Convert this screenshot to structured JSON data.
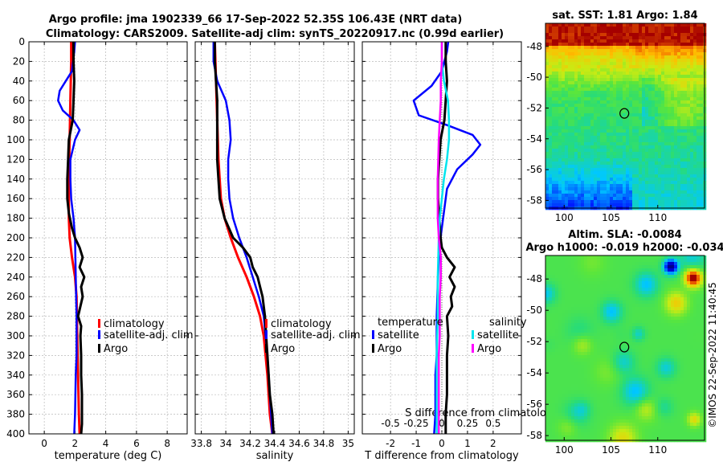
{
  "title": {
    "line1": "Argo profile: jma 1902339_66 17-Sep-2022 52.35S 106.43E (NRT data)",
    "line2": "Climatology: CARS2009. Satellite-adj clim: synTS_20220917.nc (0.99d earlier)"
  },
  "copyright": "©IMOS 22-Sep-2022 11:40:45",
  "colors": {
    "climatology": "#ff0000",
    "satellite": "#0000ff",
    "argo": "#000000",
    "sal_satellite": "#00e5ee",
    "sal_argo": "#ff00ff",
    "grid": "#b0b0b0"
  },
  "chart_data": [
    {
      "id": "temperature",
      "type": "line",
      "xlabel": "temperature (deg C)",
      "xlim": [
        -1,
        9.3
      ],
      "ylim": [
        0,
        400
      ],
      "xticks": [
        0,
        2,
        4,
        6,
        8
      ],
      "xticklabels": [
        "0",
        "2",
        "4",
        "6",
        "8"
      ],
      "yticks": [
        0,
        20,
        40,
        60,
        80,
        100,
        120,
        140,
        160,
        180,
        200,
        220,
        240,
        260,
        280,
        300,
        320,
        340,
        360,
        380,
        400
      ],
      "yticklabels": [
        "0",
        "20",
        "40",
        "60",
        "80",
        "100",
        "120",
        "140",
        "160",
        "180",
        "200",
        "220",
        "240",
        "260",
        "280",
        "300",
        "320",
        "340",
        "360",
        "380",
        "400"
      ],
      "legend": [
        "climatology",
        "satellite-adj. clim",
        "Argo"
      ],
      "series": [
        {
          "name": "climatology",
          "color": "#ff0000",
          "width": 3,
          "x": [
            1.75,
            1.75,
            1.7,
            1.65,
            1.6,
            1.6,
            1.65,
            1.8,
            2.0,
            2.1,
            2.15,
            2.2,
            2.25,
            2.3
          ],
          "y": [
            0,
            20,
            60,
            100,
            140,
            180,
            200,
            220,
            240,
            260,
            300,
            340,
            380,
            400
          ]
        },
        {
          "name": "satellite-adj. clim",
          "color": "#0000ff",
          "width": 2.5,
          "x": [
            2.0,
            1.95,
            1.8,
            1.4,
            1.0,
            0.9,
            1.2,
            1.9,
            2.3,
            2.0,
            1.7,
            1.7,
            1.75,
            1.9,
            2.0,
            2.05,
            2.1,
            2.1,
            2.1,
            2.05,
            2.0,
            1.95
          ],
          "y": [
            0,
            10,
            30,
            40,
            50,
            60,
            70,
            80,
            90,
            100,
            120,
            140,
            160,
            180,
            200,
            240,
            280,
            300,
            320,
            340,
            380,
            400
          ]
        },
        {
          "name": "Argo",
          "color": "#000000",
          "width": 3,
          "x": [
            1.9,
            1.9,
            1.95,
            1.9,
            1.85,
            1.6,
            1.55,
            1.5,
            1.5,
            1.6,
            1.8,
            2.0,
            2.3,
            2.5,
            2.3,
            2.6,
            2.4,
            2.5,
            2.2,
            2.4,
            2.35,
            2.4,
            2.4,
            2.45,
            2.45,
            2.45,
            2.4
          ],
          "y": [
            0,
            20,
            40,
            60,
            80,
            100,
            120,
            140,
            160,
            175,
            190,
            200,
            210,
            220,
            230,
            240,
            250,
            260,
            280,
            290,
            300,
            320,
            340,
            360,
            380,
            390,
            400
          ]
        }
      ]
    },
    {
      "id": "salinity",
      "type": "line",
      "xlabel": "salinity",
      "xlim": [
        33.75,
        35.05
      ],
      "ylim": [
        0,
        400
      ],
      "xticks": [
        33.8,
        34,
        34.2,
        34.4,
        34.6,
        34.8,
        35
      ],
      "xticklabels": [
        "33.8",
        "34",
        "34.2",
        "34.4",
        "34.6",
        "34.8",
        "35"
      ],
      "legend": [
        "climatology",
        "satellite-adj. clim",
        "Argo"
      ],
      "series": [
        {
          "name": "climatology",
          "color": "#ff0000",
          "width": 3,
          "x": [
            33.91,
            33.92,
            33.93,
            33.94,
            33.96,
            33.99,
            34.04,
            34.1,
            34.17,
            34.23,
            34.28,
            34.31,
            34.34,
            34.36,
            34.38
          ],
          "y": [
            0,
            40,
            80,
            120,
            160,
            180,
            200,
            220,
            240,
            260,
            280,
            300,
            340,
            380,
            400
          ]
        },
        {
          "name": "satellite-adj. clim",
          "color": "#0000ff",
          "width": 2.5,
          "x": [
            33.9,
            33.9,
            33.93,
            34.0,
            34.03,
            34.04,
            34.02,
            34.02,
            34.03,
            34.06,
            34.11,
            34.17,
            34.22,
            34.27,
            34.31,
            34.34,
            34.36,
            34.38
          ],
          "y": [
            0,
            20,
            40,
            60,
            80,
            100,
            120,
            140,
            160,
            180,
            200,
            220,
            240,
            260,
            280,
            320,
            360,
            400
          ]
        },
        {
          "name": "Argo",
          "color": "#000000",
          "width": 3,
          "x": [
            33.91,
            33.91,
            33.92,
            33.93,
            33.93,
            33.93,
            33.93,
            33.94,
            33.95,
            33.99,
            34.06,
            34.14,
            34.2,
            34.22,
            34.26,
            34.28,
            34.3,
            34.32,
            34.33,
            34.34,
            34.35,
            34.36,
            34.38,
            34.39
          ],
          "y": [
            0,
            20,
            40,
            60,
            80,
            100,
            120,
            140,
            160,
            180,
            200,
            210,
            220,
            230,
            240,
            250,
            260,
            280,
            300,
            320,
            340,
            360,
            380,
            400
          ]
        }
      ]
    },
    {
      "id": "difference",
      "type": "line",
      "xlabel": "T difference from climatology",
      "toplabel": "S difference from climatology",
      "xlim": [
        -3.1,
        3.1
      ],
      "ylim": [
        0,
        400
      ],
      "xticks": [
        -2,
        -1,
        0,
        1,
        2
      ],
      "xticklabels": [
        "-2",
        "-1",
        "0",
        "1",
        "2"
      ],
      "topticks": [
        -0.5,
        -0.25,
        0,
        0.25,
        0.5
      ],
      "topticklabels": [
        "-0.5",
        "-0.25",
        "0",
        "0.25",
        "0.5"
      ],
      "s_scale": 4,
      "legend_headers": [
        "temperature",
        "salinity"
      ],
      "legend_temperature": [
        "satellite",
        "Argo"
      ],
      "legend_salinity": [
        "satellite",
        "Argo"
      ],
      "series": [
        {
          "name": "temperature satellite",
          "color": "#0000ff",
          "width": 2.5,
          "axis": "T",
          "x": [
            0.25,
            0.2,
            0.0,
            -0.4,
            -1.1,
            -0.9,
            0.2,
            1.2,
            1.5,
            1.2,
            0.6,
            0.2,
            0.1,
            0.0,
            -0.1,
            -0.15,
            -0.2,
            -0.2,
            -0.2,
            -0.25,
            -0.25,
            -0.3
          ],
          "y": [
            0,
            10,
            30,
            45,
            60,
            75,
            85,
            95,
            105,
            115,
            130,
            150,
            170,
            190,
            210,
            240,
            280,
            300,
            320,
            340,
            380,
            400
          ]
        },
        {
          "name": "temperature Argo",
          "color": "#000000",
          "width": 3,
          "axis": "T",
          "x": [
            0.15,
            0.15,
            0.2,
            0.15,
            0.1,
            -0.05,
            -0.1,
            -0.15,
            -0.15,
            -0.1,
            -0.05,
            0.0,
            0.2,
            0.5,
            0.3,
            0.5,
            0.35,
            0.4,
            0.2,
            0.25,
            0.2,
            0.2,
            0.2,
            0.15,
            0.15
          ],
          "y": [
            0,
            20,
            40,
            60,
            80,
            100,
            120,
            140,
            160,
            180,
            200,
            210,
            220,
            230,
            240,
            250,
            260,
            270,
            280,
            300,
            320,
            340,
            360,
            380,
            400
          ]
        },
        {
          "name": "salinity satellite",
          "color": "#00e5ee",
          "width": 2.5,
          "axis": "S",
          "x": [
            0.0,
            0.0,
            0.02,
            0.06,
            0.07,
            0.07,
            0.05,
            0.02,
            0.0,
            -0.02,
            -0.03,
            -0.04,
            -0.04,
            -0.05,
            -0.05,
            -0.05,
            -0.05
          ],
          "y": [
            0,
            20,
            40,
            60,
            80,
            100,
            120,
            140,
            160,
            180,
            200,
            240,
            280,
            320,
            360,
            380,
            400
          ]
        },
        {
          "name": "salinity Argo",
          "color": "#ff00ff",
          "width": 2.5,
          "axis": "S",
          "x": [
            0.0,
            0.0,
            -0.01,
            -0.01,
            -0.02,
            -0.03,
            -0.04,
            -0.04,
            -0.03,
            -0.01,
            -0.01,
            -0.02,
            -0.02,
            -0.02,
            -0.03,
            -0.03,
            -0.03
          ],
          "y": [
            0,
            20,
            40,
            60,
            80,
            100,
            140,
            180,
            200,
            220,
            240,
            260,
            280,
            300,
            320,
            360,
            400
          ]
        }
      ]
    },
    {
      "id": "sst_map",
      "type": "heatmap",
      "title": "sat. SST: 1.81 Argo: 1.84",
      "xticks": [
        100,
        105,
        110
      ],
      "xticklabels": [
        "100",
        "105",
        "110"
      ],
      "yticks": [
        -48,
        -50,
        -52,
        -54,
        -56,
        -58
      ],
      "yticklabels": [
        "-48",
        "-50",
        "-52",
        "-54",
        "-56",
        "-58"
      ],
      "xlim": [
        98,
        115
      ],
      "ylim": [
        -58.5,
        -46.5
      ],
      "marker": {
        "lon": 106.43,
        "lat": -52.35
      }
    },
    {
      "id": "sla_map",
      "type": "heatmap",
      "title_line1": "Altim. SLA: -0.0084",
      "title_line2": "Argo h1000: -0.019 h2000: -0.034",
      "xticks": [
        100,
        105,
        110
      ],
      "xticklabels": [
        "100",
        "105",
        "110"
      ],
      "yticks": [
        -48,
        -50,
        -52,
        -54,
        -56,
        -58
      ],
      "yticklabels": [
        "-48",
        "-50",
        "-52",
        "-54",
        "-56",
        "-58"
      ],
      "xlim": [
        98,
        115
      ],
      "ylim": [
        -58.3,
        -46.5
      ],
      "marker": {
        "lon": 106.43,
        "lat": -52.35
      }
    }
  ]
}
